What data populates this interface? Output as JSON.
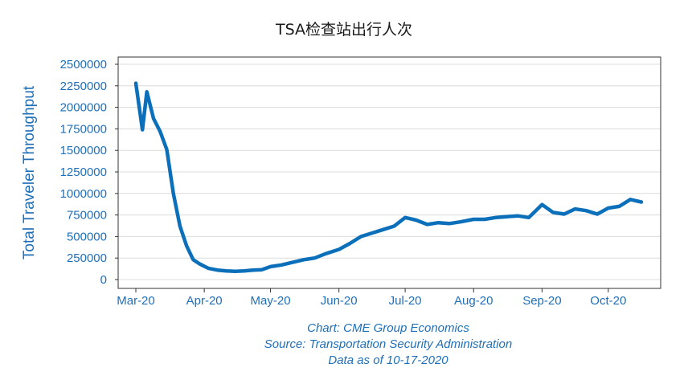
{
  "title": "TSA检查站出行人次",
  "colors": {
    "line": "#0b6fba",
    "axis_text": "#1f6fb8",
    "grid": "#dcdcdc",
    "frame": "#333333"
  },
  "captions": {
    "chart": "Chart: CME Group Economics",
    "source": "Source: Transportation Security Administration",
    "asof": "Data as of 10-17-2020"
  },
  "chart_data": {
    "type": "line",
    "ylabel": "Total Traveler Throughput",
    "xlabel": "",
    "ylim": [
      0,
      2500000
    ],
    "yticks": [
      0,
      250000,
      500000,
      750000,
      1000000,
      1250000,
      1500000,
      1750000,
      2000000,
      2250000,
      2500000
    ],
    "ytick_labels": [
      "0",
      "250000",
      "500000",
      "750000",
      "1000000",
      "1250000",
      "1500000",
      "1750000",
      "2000000",
      "2250000",
      "2500000"
    ],
    "xtick_labels": [
      "Mar-20",
      "Apr-20",
      "May-20",
      "Jun-20",
      "Jul-20",
      "Aug-20",
      "Sep-20",
      "Oct-20"
    ],
    "xticks": [
      "2020-03-01",
      "2020-04-01",
      "2020-05-01",
      "2020-06-01",
      "2020-07-01",
      "2020-08-01",
      "2020-09-01",
      "2020-10-01"
    ],
    "grid": true,
    "series": [
      {
        "name": "",
        "x": [
          "2020-03-01",
          "2020-03-04",
          "2020-03-06",
          "2020-03-09",
          "2020-03-12",
          "2020-03-15",
          "2020-03-18",
          "2020-03-21",
          "2020-03-24",
          "2020-03-27",
          "2020-03-30",
          "2020-04-03",
          "2020-04-07",
          "2020-04-11",
          "2020-04-15",
          "2020-04-19",
          "2020-04-23",
          "2020-04-27",
          "2020-05-01",
          "2020-05-06",
          "2020-05-11",
          "2020-05-16",
          "2020-05-21",
          "2020-05-26",
          "2020-06-01",
          "2020-06-06",
          "2020-06-11",
          "2020-06-16",
          "2020-06-21",
          "2020-06-26",
          "2020-07-01",
          "2020-07-06",
          "2020-07-11",
          "2020-07-16",
          "2020-07-21",
          "2020-07-26",
          "2020-08-01",
          "2020-08-06",
          "2020-08-11",
          "2020-08-16",
          "2020-08-21",
          "2020-08-26",
          "2020-09-01",
          "2020-09-06",
          "2020-09-11",
          "2020-09-16",
          "2020-09-21",
          "2020-09-26",
          "2020-10-01",
          "2020-10-06",
          "2020-10-11",
          "2020-10-16"
        ],
        "values": [
          2280000,
          1740000,
          2180000,
          1870000,
          1720000,
          1510000,
          1000000,
          620000,
          390000,
          230000,
          180000,
          130000,
          110000,
          100000,
          95000,
          100000,
          110000,
          115000,
          150000,
          170000,
          200000,
          230000,
          250000,
          300000,
          350000,
          420000,
          500000,
          540000,
          580000,
          620000,
          720000,
          690000,
          640000,
          660000,
          650000,
          670000,
          700000,
          700000,
          720000,
          730000,
          740000,
          720000,
          870000,
          780000,
          760000,
          820000,
          800000,
          760000,
          830000,
          850000,
          930000,
          900000
        ]
      }
    ]
  }
}
